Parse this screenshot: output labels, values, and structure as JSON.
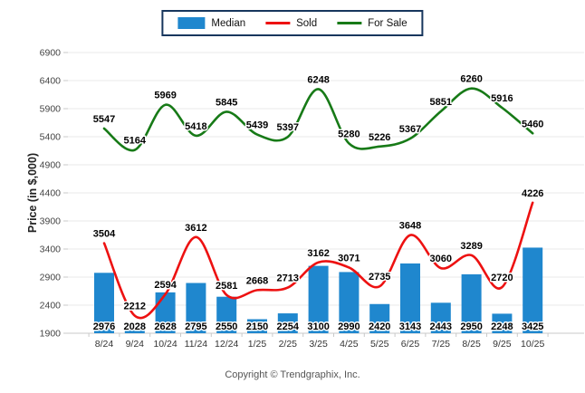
{
  "legend": {
    "border_color": "#17365D"
  },
  "footer": {
    "copyright": "Copyright © Trendgraphix, Inc."
  },
  "colors": {
    "gridline": "#E9E9E9",
    "axis": "#C9C9C9",
    "tick_text": "#444444",
    "x_label_text": "#333333",
    "value_label_text": "#000000"
  },
  "chart_data": {
    "type": "combo",
    "title": "",
    "xlabel": "",
    "ylabel": "Price (in $,000)",
    "ylim": [
      1900,
      6900
    ],
    "ytick_step": 500,
    "grid": true,
    "legend_position": "top",
    "categories": [
      "8/24",
      "9/24",
      "10/24",
      "11/24",
      "12/24",
      "1/25",
      "2/25",
      "3/25",
      "4/25",
      "5/25",
      "6/25",
      "7/25",
      "8/25",
      "9/25",
      "10/25"
    ],
    "series": [
      {
        "name": "Median",
        "type": "bar",
        "color": "#1F87CE",
        "values": [
          2976,
          2028,
          2628,
          2795,
          2550,
          2150,
          2254,
          3100,
          2990,
          2420,
          3143,
          2443,
          2950,
          2248,
          3425
        ]
      },
      {
        "name": "Sold",
        "type": "line",
        "color": "#ED1111",
        "values": [
          3504,
          2212,
          2594,
          3612,
          2581,
          2668,
          2713,
          3162,
          3071,
          2735,
          3648,
          3060,
          3289,
          2720,
          4226
        ]
      },
      {
        "name": "For Sale",
        "type": "line",
        "color": "#177A17",
        "values": [
          5547,
          5164,
          5969,
          5418,
          5845,
          5439,
          5397,
          6248,
          5280,
          5226,
          5367,
          5851,
          6260,
          5916,
          5460
        ]
      }
    ]
  }
}
